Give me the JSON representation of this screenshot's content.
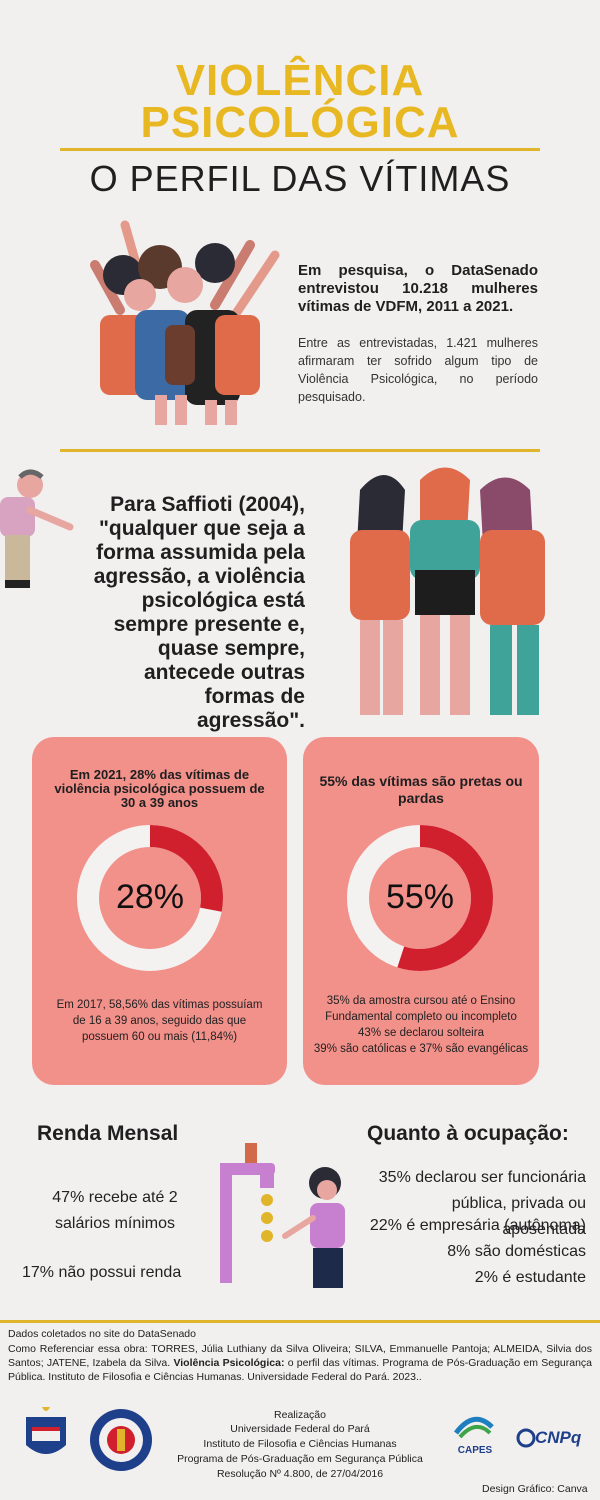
{
  "header": {
    "title_line1": "VIOLÊNCIA",
    "title_line2": "PSICOLÓGICA",
    "subtitle": "O PERFIL DAS VÍTIMAS"
  },
  "intro": {
    "bold": "Em pesquisa, o DataSenado entrevistou 10.218 mulheres vítimas de VDFM, 2011 a 2021.",
    "text": "Entre as entrevistadas, 1.421 mulheres afirmaram ter sofrido algum tipo de Violência Psicológica, no período pesquisado."
  },
  "quote": {
    "text": "Para Saffioti (2004), \"qualquer que seja a forma assumida pela agressão, a violência psicológica está sempre presente e, quase sempre, antecede outras formas de agressão\"."
  },
  "card_age": {
    "heading": "Em 2021, 28% das vítimas de violência psicológica possuem de 30 a 39 anos",
    "percent_label": "28%",
    "percent": 28,
    "note": "Em 2017, 58,56% das vítimas possuíam de 16 a 39 anos, seguido das que possuem 60 ou mais (11,84%)"
  },
  "card_race": {
    "heading": "55% das vítimas são pretas ou pardas",
    "percent_label": "55%",
    "percent": 55,
    "note1": "35% da amostra cursou até o Ensino Fundamental completo ou incompleto",
    "note2": "43% se declarou solteira",
    "note3": "39% são católicas e 37% são evangélicas"
  },
  "income": {
    "title": "Renda Mensal",
    "stat1": "47% recebe até 2 salários mínimos",
    "stat2": "17% não possui renda"
  },
  "occupation": {
    "title": "Quanto à ocupação:",
    "stat1": "35% declarou ser funcionária pública, privada ou aposentada",
    "stat2": "22% é empresária (autônoma)",
    "stat3": "8% são domésticas",
    "stat4": "2% é estudante"
  },
  "footer": {
    "source": "Dados coletados no site do DataSenado",
    "cite_pre": "Como Referenciar essa obra: TORRES, Júlia Luthiany da Silva Oliveira; SILVA, Emmanuelle Pantoja; ALMEIDA, Silvia dos Santos; JATENE, Izabela da Silva.",
    "cite_bold": "Violência Psicológica:",
    "cite_post": "o perfil das vítimas. Programa de Pós-Graduação em Segurança Pública. Instituto de Filosofia e Ciências Humanas. Universidade Federal do Pará. 2023..",
    "realizacao": "Realização",
    "line1": "Universidade Federal do Pará",
    "line2": "Instituto de Filosofia e Ciências Humanas",
    "line3": "Programa de Pós-Graduação em Segurança Pública",
    "line4": "Resolução Nº 4.800, de 27/04/2016",
    "capes": "CAPES",
    "cnpq": "CNPq",
    "design": "Design Gráfico: Canva"
  },
  "colors": {
    "accent": "#e8b822",
    "card": "#f2908a",
    "ring_fill": "#d0202e",
    "ring_track": "#f4f1f1"
  }
}
